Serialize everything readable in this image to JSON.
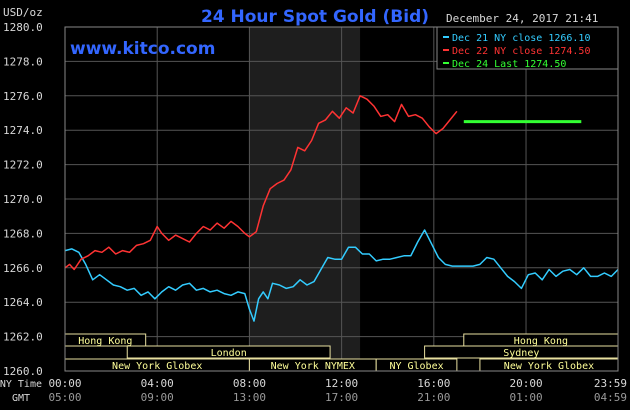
{
  "header": {
    "title": "24 Hour Spot Gold (Bid)",
    "currency_unit": "USD/oz",
    "date_time": "December 24, 2017 21:41",
    "website": "www.kitco.com"
  },
  "legend": [
    {
      "label": "Dec 21 NY close 1266.10",
      "color": "#33ccff"
    },
    {
      "label": "Dec 22 NY close 1274.50",
      "color": "#ff3333"
    },
    {
      "label": "Dec 24 Last 1274.50",
      "color": "#33ff33"
    }
  ],
  "time_axis": {
    "ny_label": "NY Time",
    "gmt_label": "GMT",
    "ny_ticks": [
      "00:00",
      "04:00",
      "08:00",
      "12:00",
      "16:00",
      "20:00",
      "23:59"
    ],
    "gmt_ticks": [
      "05:00",
      "09:00",
      "13:00",
      "17:00",
      "21:00",
      "01:00",
      "04:59"
    ]
  },
  "sessions": [
    {
      "label": "Hong Kong",
      "start": 0,
      "end": 3.5,
      "row": 0
    },
    {
      "label": "Hong Kong",
      "start": 17.3,
      "end": 23.99,
      "row": 0
    },
    {
      "label": "London",
      "start": 2.7,
      "end": 11.5,
      "row": 1
    },
    {
      "label": "Sydney",
      "start": 15.6,
      "end": 23.99,
      "row": 1
    },
    {
      "label": "New York Globex",
      "start": 0,
      "end": 8,
      "row": 2
    },
    {
      "label": "New York NYMEX",
      "start": 8,
      "end": 13.5,
      "row": 2
    },
    {
      "label": "NY Globex",
      "start": 13.5,
      "end": 17,
      "row": 2
    },
    {
      "label": "New York Globex",
      "start": 18,
      "end": 23.99,
      "row": 2
    }
  ],
  "colors": {
    "background": "#000000",
    "grid": "#555555",
    "highlight_band": "#1e1e1e",
    "title": "#3366ff",
    "axis_text": "#d8d8d8",
    "session_box": "#e8e0a0",
    "session_text": "#ffff99"
  },
  "chart_data": {
    "type": "line",
    "xlim": [
      0,
      23.99
    ],
    "ylim": [
      1260,
      1280
    ],
    "y_ticks": [
      "1260.0",
      "1262.0",
      "1264.0",
      "1266.0",
      "1268.0",
      "1270.0",
      "1272.0",
      "1274.0",
      "1276.0",
      "1278.0",
      "1280.0"
    ],
    "highlight_x": [
      8.0,
      12.8
    ],
    "series": [
      {
        "name": "Dec 21 NY close 1266.10",
        "color": "#33ccff",
        "x": [
          0,
          0.3,
          0.6,
          0.9,
          1.2,
          1.5,
          1.8,
          2.1,
          2.4,
          2.7,
          3.0,
          3.3,
          3.6,
          3.9,
          4.2,
          4.5,
          4.8,
          5.1,
          5.4,
          5.7,
          6.0,
          6.3,
          6.6,
          6.9,
          7.2,
          7.5,
          7.8,
          8.0,
          8.2,
          8.4,
          8.6,
          8.8,
          9.0,
          9.3,
          9.6,
          9.9,
          10.2,
          10.5,
          10.8,
          11.1,
          11.4,
          11.7,
          12.0,
          12.3,
          12.6,
          12.9,
          13.2,
          13.5,
          13.8,
          14.1,
          14.4,
          14.7,
          15.0,
          15.3,
          15.6,
          15.9,
          16.2,
          16.5,
          16.8,
          17.1,
          17.4,
          17.7,
          18.0,
          18.3,
          18.6,
          18.9,
          19.2,
          19.5,
          19.8,
          20.1,
          20.4,
          20.7,
          21.0,
          21.3,
          21.6,
          21.9,
          22.2,
          22.5,
          22.8,
          23.1,
          23.4,
          23.7,
          23.99
        ],
        "values": [
          1267.0,
          1267.1,
          1266.9,
          1266.2,
          1265.3,
          1265.6,
          1265.3,
          1265.0,
          1264.9,
          1264.7,
          1264.8,
          1264.4,
          1264.6,
          1264.2,
          1264.6,
          1264.9,
          1264.7,
          1265.0,
          1265.1,
          1264.7,
          1264.8,
          1264.6,
          1264.7,
          1264.5,
          1264.4,
          1264.6,
          1264.5,
          1263.6,
          1262.9,
          1264.2,
          1264.6,
          1264.2,
          1265.1,
          1265.0,
          1264.8,
          1264.9,
          1265.3,
          1265.0,
          1265.2,
          1265.9,
          1266.6,
          1266.5,
          1266.5,
          1267.2,
          1267.2,
          1266.8,
          1266.8,
          1266.4,
          1266.5,
          1266.5,
          1266.6,
          1266.7,
          1266.7,
          1267.5,
          1268.2,
          1267.4,
          1266.6,
          1266.2,
          1266.1,
          1266.1,
          1266.1,
          1266.1,
          1266.2,
          1266.6,
          1266.5,
          1266.0,
          1265.5,
          1265.2,
          1264.8,
          1265.6,
          1265.7,
          1265.3,
          1265.9,
          1265.5,
          1265.8,
          1265.9,
          1265.6,
          1266.0,
          1265.5,
          1265.5,
          1265.7,
          1265.5,
          1265.9
        ]
      },
      {
        "name": "Dec 22 NY close 1274.50",
        "color": "#ff3333",
        "x": [
          0,
          0.2,
          0.4,
          0.7,
          1.0,
          1.3,
          1.6,
          1.9,
          2.2,
          2.5,
          2.8,
          3.1,
          3.4,
          3.7,
          4.0,
          4.2,
          4.5,
          4.8,
          5.1,
          5.4,
          5.7,
          6.0,
          6.3,
          6.6,
          6.9,
          7.2,
          7.5,
          7.8,
          8.0,
          8.3,
          8.6,
          8.9,
          9.2,
          9.5,
          9.8,
          10.1,
          10.4,
          10.7,
          11.0,
          11.3,
          11.6,
          11.9,
          12.2,
          12.5,
          12.8,
          13.1,
          13.4,
          13.7,
          14.0,
          14.3,
          14.6,
          14.9,
          15.2,
          15.5,
          15.8,
          16.1,
          16.4,
          16.7,
          17.0
        ],
        "values": [
          1266.0,
          1266.2,
          1265.9,
          1266.5,
          1266.7,
          1267.0,
          1266.9,
          1267.2,
          1266.8,
          1267.0,
          1266.9,
          1267.3,
          1267.4,
          1267.6,
          1268.4,
          1268.0,
          1267.6,
          1267.9,
          1267.7,
          1267.5,
          1268.0,
          1268.4,
          1268.2,
          1268.6,
          1268.3,
          1268.7,
          1268.4,
          1268.0,
          1267.8,
          1268.1,
          1269.6,
          1270.6,
          1270.9,
          1271.1,
          1271.7,
          1273.0,
          1272.8,
          1273.4,
          1274.4,
          1274.6,
          1275.1,
          1274.7,
          1275.3,
          1275.0,
          1276.0,
          1275.8,
          1275.4,
          1274.8,
          1274.9,
          1274.5,
          1275.5,
          1274.8,
          1274.9,
          1274.7,
          1274.2,
          1273.8,
          1274.1,
          1274.6,
          1275.1
        ]
      },
      {
        "name": "Dec 24 Last 1274.50",
        "color": "#33ff33",
        "x": [
          17.3,
          22.4
        ],
        "values": [
          1274.5,
          1274.5
        ]
      }
    ]
  }
}
